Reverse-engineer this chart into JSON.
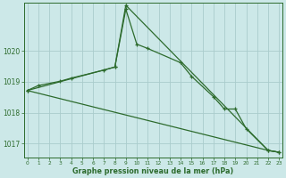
{
  "xlabel": "Graphe pression niveau de la mer (hPa)",
  "background_color": "#cce8e8",
  "grid_color": "#aacccc",
  "line_color": "#2d6b2d",
  "hours": 24,
  "line1_x": [
    0,
    1,
    3,
    4,
    7,
    8,
    9,
    10,
    11,
    14,
    15,
    17,
    18,
    19,
    20,
    22,
    23
  ],
  "line1_y": [
    1018.72,
    1018.88,
    1019.02,
    1019.12,
    1019.38,
    1019.48,
    1021.35,
    1020.22,
    1020.08,
    1019.62,
    1019.18,
    1018.52,
    1018.12,
    1018.12,
    1017.48,
    1016.78,
    1016.72
  ],
  "line2_x": [
    0,
    8,
    9,
    22,
    23
  ],
  "line2_y": [
    1018.72,
    1019.48,
    1021.48,
    1016.78,
    1016.72
  ],
  "line3_x": [
    0,
    22,
    23
  ],
  "line3_y": [
    1018.72,
    1016.78,
    1016.72
  ],
  "ylim_min": 1016.55,
  "ylim_max": 1021.55,
  "yticks": [
    1017,
    1018,
    1019,
    1020
  ],
  "xlim_min": -0.3,
  "xlim_max": 23.3,
  "ytick_fontsize": 5.5,
  "xtick_fontsize": 4.2,
  "xlabel_fontsize": 5.8
}
